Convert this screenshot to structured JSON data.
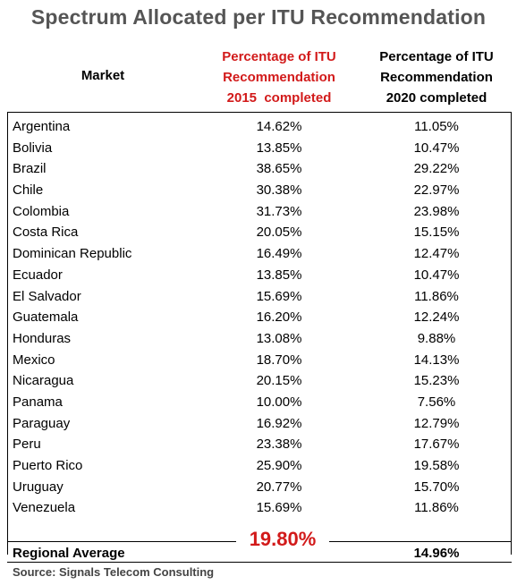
{
  "chart_data": {
    "type": "table",
    "title": "Spectrum Allocated per ITU Recommendation",
    "columns": [
      "Market",
      "Percentage of ITU Recommendation 2015 completed",
      "Percentage of ITU Recommendation 2020 completed"
    ],
    "header_lines": {
      "market": [
        "Market"
      ],
      "col2015": [
        "Percentage of ITU",
        "Recommendation",
        "2015  completed"
      ],
      "col2020": [
        "Percentage of ITU",
        "Recommendation",
        "2020 completed"
      ]
    },
    "rows": [
      {
        "market": "Argentina",
        "pct2015": "14.62%",
        "pct2020": "11.05%"
      },
      {
        "market": "Bolivia",
        "pct2015": "13.85%",
        "pct2020": "10.47%"
      },
      {
        "market": "Brazil",
        "pct2015": "38.65%",
        "pct2020": "29.22%"
      },
      {
        "market": "Chile",
        "pct2015": "30.38%",
        "pct2020": "22.97%"
      },
      {
        "market": "Colombia",
        "pct2015": "31.73%",
        "pct2020": "23.98%"
      },
      {
        "market": "Costa Rica",
        "pct2015": "20.05%",
        "pct2020": "15.15%"
      },
      {
        "market": "Dominican Republic",
        "pct2015": "16.49%",
        "pct2020": "12.47%"
      },
      {
        "market": "Ecuador",
        "pct2015": "13.85%",
        "pct2020": "10.47%"
      },
      {
        "market": "El Salvador",
        "pct2015": "15.69%",
        "pct2020": "11.86%"
      },
      {
        "market": "Guatemala",
        "pct2015": "16.20%",
        "pct2020": "12.24%"
      },
      {
        "market": "Honduras",
        "pct2015": "13.08%",
        "pct2020": "9.88%"
      },
      {
        "market": "Mexico",
        "pct2015": "18.70%",
        "pct2020": "14.13%"
      },
      {
        "market": "Nicaragua",
        "pct2015": "20.15%",
        "pct2020": "15.23%"
      },
      {
        "market": "Panama",
        "pct2015": "10.00%",
        "pct2020": "7.56%"
      },
      {
        "market": "Paraguay",
        "pct2015": "16.92%",
        "pct2020": "12.79%"
      },
      {
        "market": "Peru",
        "pct2015": "23.38%",
        "pct2020": "17.67%"
      },
      {
        "market": "Puerto Rico",
        "pct2015": "25.90%",
        "pct2020": "19.58%"
      },
      {
        "market": "Uruguay",
        "pct2015": "20.77%",
        "pct2020": "15.70%"
      },
      {
        "market": "Venezuela",
        "pct2015": "15.69%",
        "pct2020": "11.86%"
      }
    ],
    "average": {
      "label": "Regional Average",
      "pct2015": "19.80%",
      "pct2020": "14.96%"
    },
    "source": "Source: Signals Telecom Consulting",
    "colors": {
      "highlight": "#d21a1a",
      "title": "#555555"
    }
  }
}
